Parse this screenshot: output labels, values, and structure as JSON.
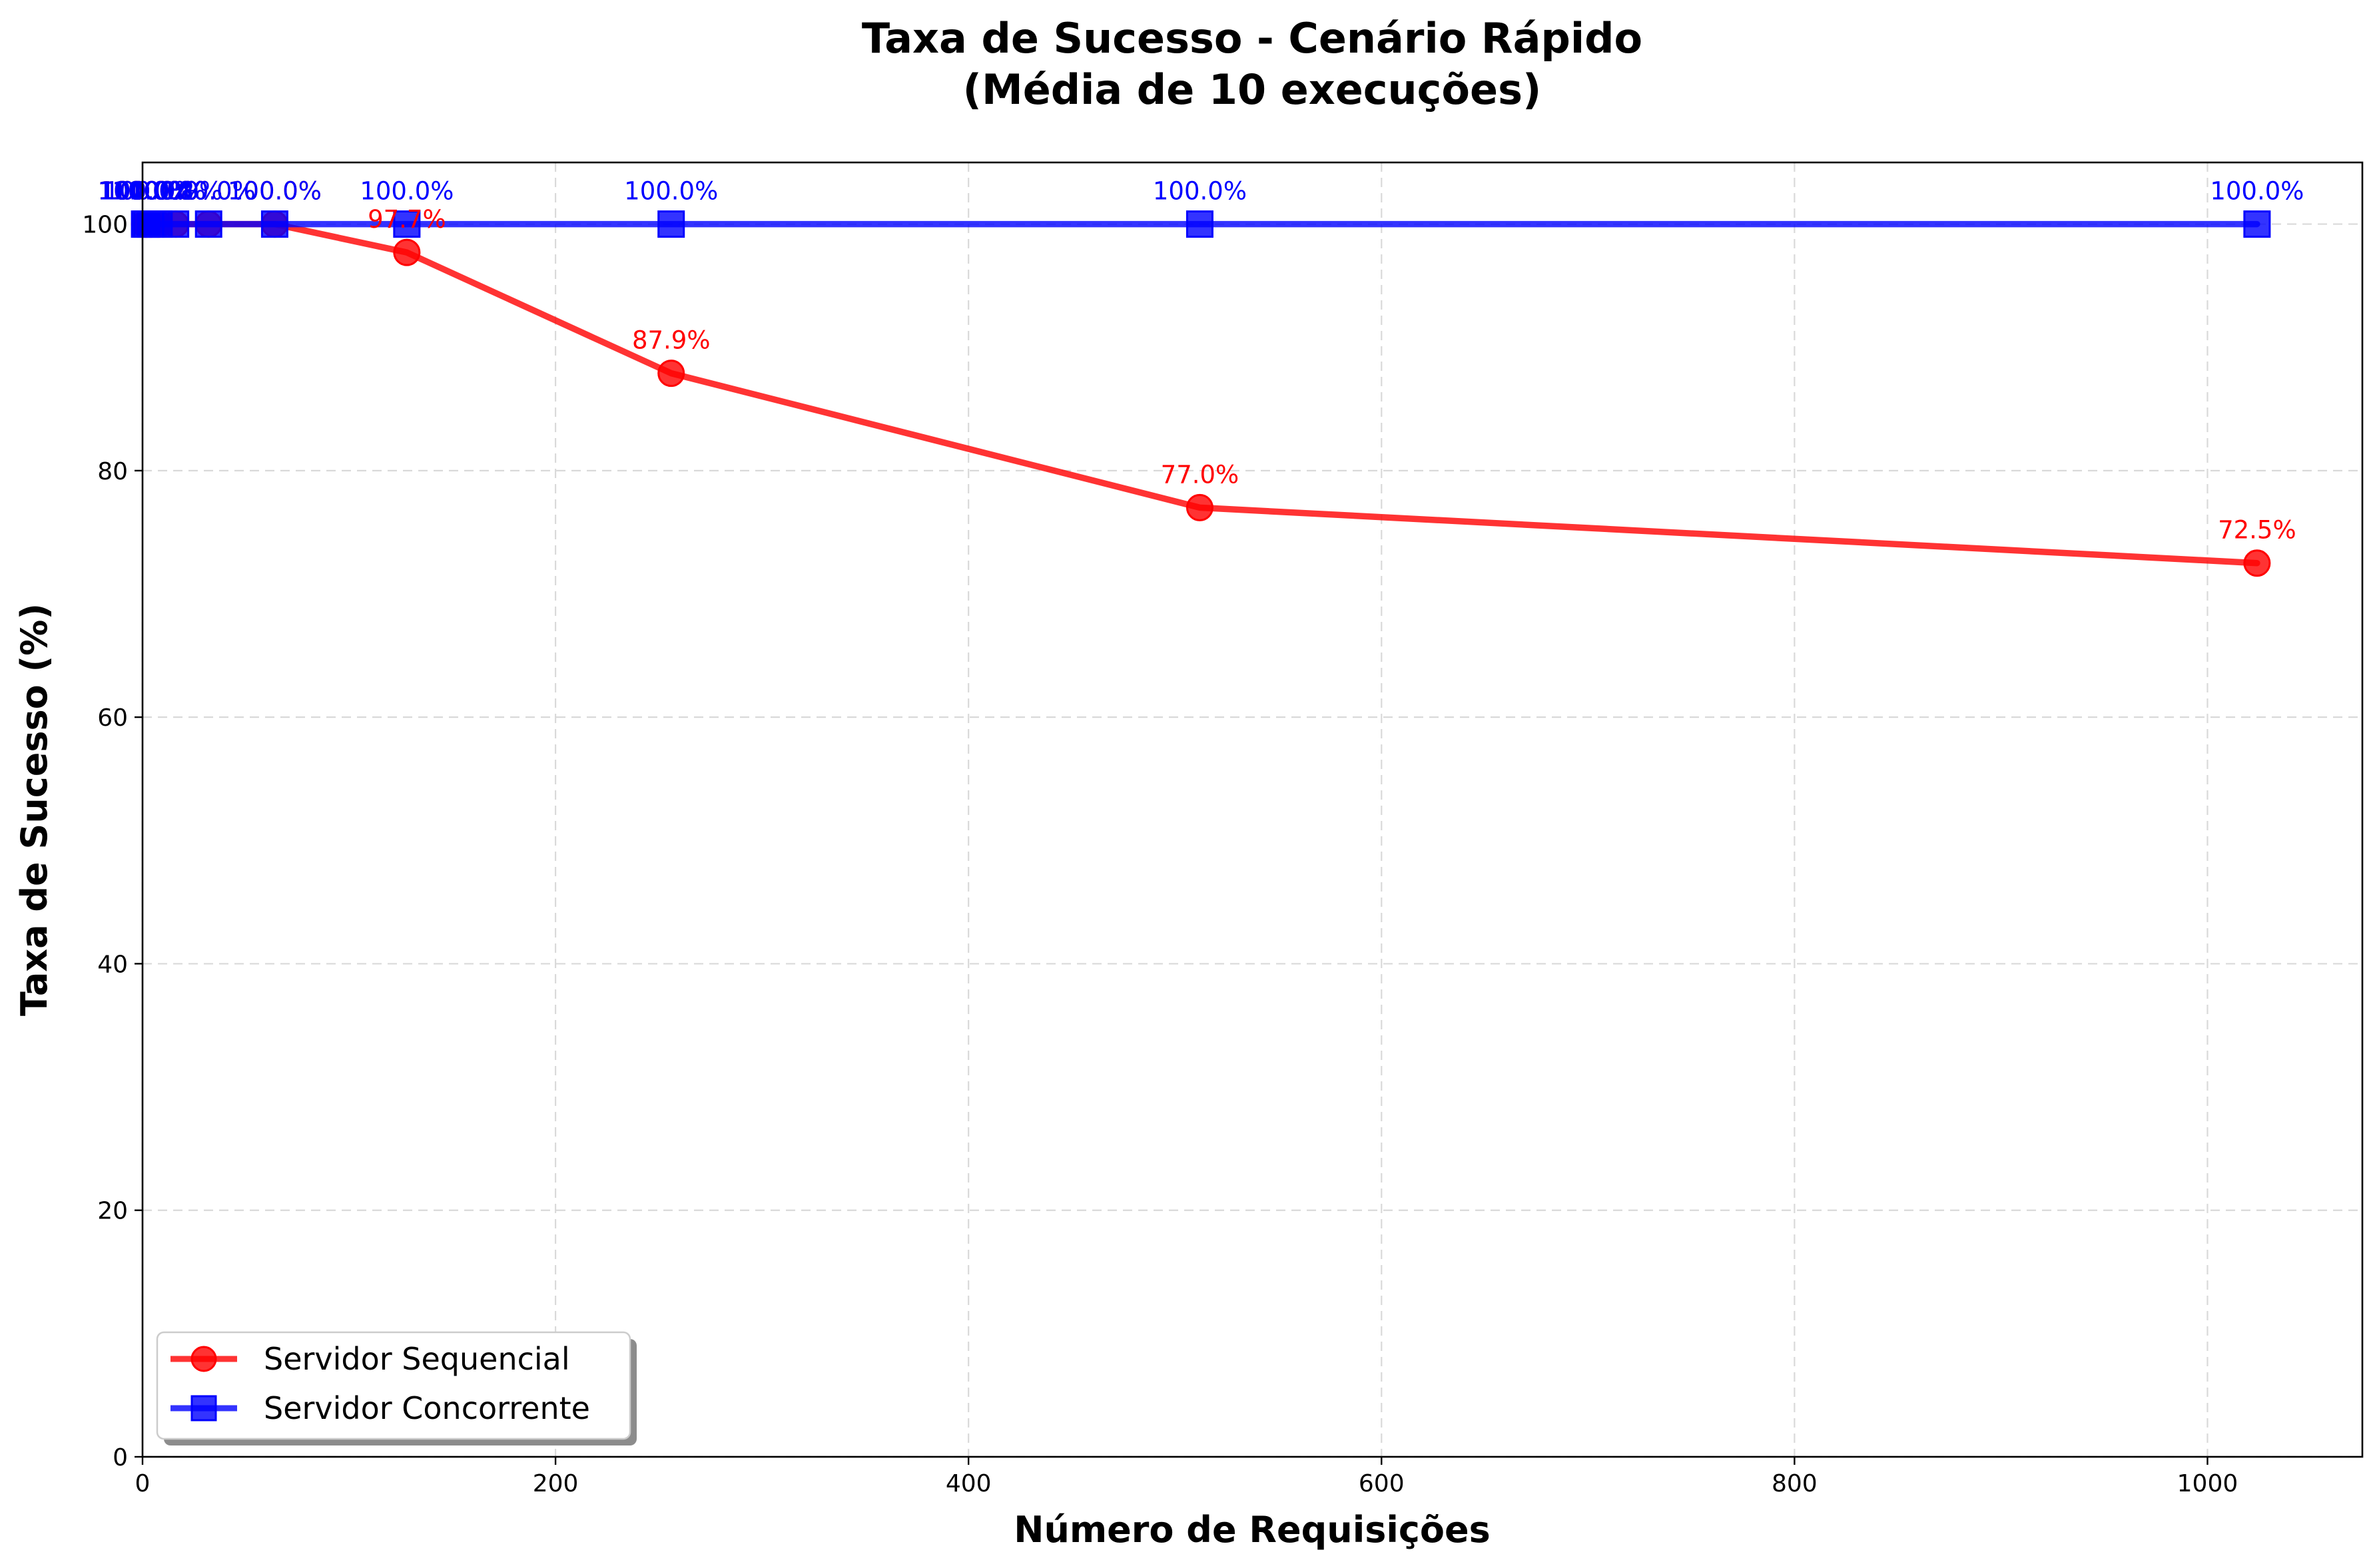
{
  "chart_data": {
    "type": "line",
    "title_line1": "Taxa de Sucesso - Cenário Rápido",
    "title_line2": "(Média de 10 execuções)",
    "xlabel": "Número de Requisições",
    "ylabel": "Taxa de Sucesso (%)",
    "xlim": [
      0,
      1075
    ],
    "ylim": [
      0,
      105
    ],
    "x_ticks": [
      0,
      200,
      400,
      600,
      800,
      1000
    ],
    "y_ticks": [
      0,
      20,
      40,
      60,
      80,
      100
    ],
    "grid": true,
    "legend_position": "lower-left",
    "x": [
      1,
      2,
      4,
      8,
      16,
      32,
      64,
      128,
      256,
      512,
      1024
    ],
    "series": [
      {
        "name": "Servidor Sequencial",
        "color": "#ff0000",
        "marker": "circle",
        "values": [
          100.0,
          100.0,
          100.0,
          100.0,
          100.0,
          100.0,
          100.0,
          97.7,
          87.9,
          77.0,
          72.5
        ],
        "labels": [
          "100.0%",
          "100.0%",
          "100.0%",
          "100.0%",
          "100.0%",
          "100.0%",
          "100.0%",
          "97.7%",
          "87.9%",
          "77.0%",
          "72.5%"
        ]
      },
      {
        "name": "Servidor Concorrente",
        "color": "#0000ff",
        "marker": "square",
        "values": [
          100.0,
          100.0,
          100.0,
          100.0,
          100.0,
          100.0,
          100.0,
          100.0,
          100.0,
          100.0,
          100.0
        ],
        "labels": [
          "100.0%",
          "100.0%",
          "100.0%",
          "100.0%",
          "100.0%",
          "100.0%",
          "100.0%",
          "100.0%",
          "100.0%",
          "100.0%",
          "100.0%"
        ]
      }
    ]
  }
}
